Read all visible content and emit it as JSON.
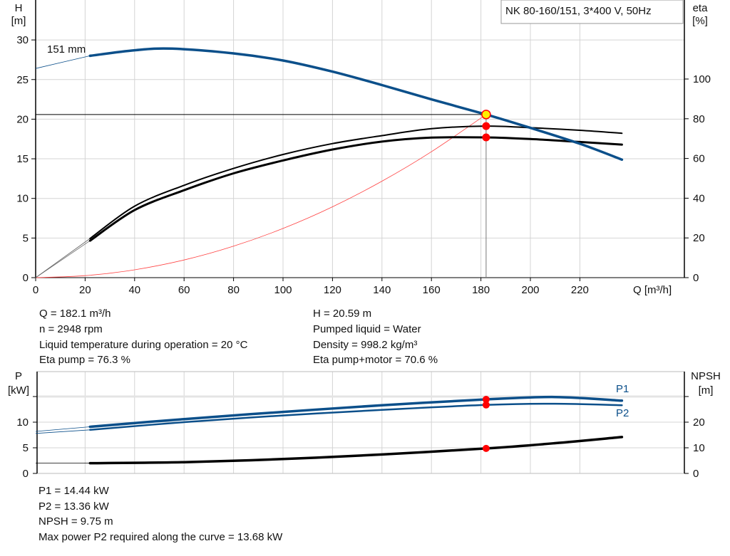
{
  "title_box": "NK 80-160/151, 3*400 V, 50Hz",
  "impeller_label": "151 mm",
  "colors": {
    "head": "#0b4f8a",
    "eta": "#000000",
    "system": "#ff4040",
    "op_point": "#ff0000",
    "op_point_fill": "#ffee00",
    "power": "#0b4f8a",
    "npsh": "#000000",
    "grid": "#d4d4d4"
  },
  "chart_data": [
    {
      "type": "line",
      "xlabel": "Q [m³/h]",
      "ylabel": "H\n[m]",
      "ylabel_lines": [
        "H",
        "[m]"
      ],
      "y2label_lines": [
        "eta",
        "[%]"
      ],
      "xlim": [
        0,
        262
      ],
      "ylim": [
        0,
        35
      ],
      "y2lim": [
        0,
        125
      ],
      "xticks": [
        0,
        20,
        40,
        60,
        80,
        100,
        120,
        140,
        160,
        180,
        200,
        220
      ],
      "yticks": [
        0,
        5,
        10,
        15,
        20,
        25,
        30
      ],
      "y2ticks": [
        0,
        20,
        40,
        60,
        80,
        100
      ],
      "grid": true,
      "series": [
        {
          "key": "head",
          "name": "151 mm",
          "axis": "H",
          "thin_until": 22,
          "x": [
            0,
            22,
            40,
            55,
            80,
            100,
            120,
            140,
            160,
            182.1,
            200,
            220,
            237
          ],
          "y": [
            26.4,
            28.0,
            28.7,
            28.9,
            28.3,
            27.4,
            26.0,
            24.3,
            22.5,
            20.59,
            18.9,
            16.9,
            14.9
          ]
        },
        {
          "key": "eta_pump",
          "axis": "eta",
          "thin_until": 22,
          "x": [
            0,
            22,
            40,
            60,
            80,
            100,
            120,
            140,
            160,
            182.1,
            200,
            220,
            237
          ],
          "y": [
            0,
            19.7,
            36,
            46.5,
            55,
            62,
            67.5,
            71.5,
            75,
            76.3,
            75.5,
            74.2,
            72.7
          ]
        },
        {
          "key": "eta_pump_motor",
          "axis": "eta",
          "thin_until": 22,
          "x": [
            0,
            22,
            40,
            60,
            80,
            100,
            120,
            140,
            160,
            182.1,
            200,
            220,
            237
          ],
          "y": [
            0,
            18.6,
            34,
            44,
            52.5,
            59,
            64.5,
            68.5,
            70.5,
            70.6,
            69.8,
            68.3,
            67
          ]
        },
        {
          "key": "system",
          "axis": "H",
          "x": [
            0,
            20,
            40,
            60,
            80,
            100,
            120,
            140,
            160,
            182.1
          ],
          "y": [
            0,
            0.25,
            0.99,
            2.23,
            3.97,
            6.21,
            8.94,
            12.17,
            15.89,
            20.59
          ]
        }
      ],
      "operating_point": {
        "Q": 182.1,
        "H": 20.59,
        "eta_pump": 76.3,
        "eta_pump_motor": 70.6
      }
    },
    {
      "type": "line",
      "ylabel_lines": [
        "P",
        "[kW]"
      ],
      "y2label_lines": [
        "NPSH",
        "[m]"
      ],
      "xlim": [
        0,
        262
      ],
      "ylim": [
        0,
        20
      ],
      "y2lim": [
        0,
        40
      ],
      "yticks": [
        0,
        5,
        10
      ],
      "y2ticks": [
        0,
        10,
        20
      ],
      "grid": true,
      "series": [
        {
          "key": "P1",
          "name": "P1",
          "axis": "P",
          "thin_until": 22,
          "x": [
            0,
            22,
            60,
            100,
            140,
            182.1,
            210,
            237
          ],
          "y": [
            8.2,
            9.1,
            10.6,
            12.0,
            13.3,
            14.44,
            14.9,
            14.2
          ]
        },
        {
          "key": "P2",
          "name": "P2",
          "axis": "P",
          "thin_until": 22,
          "x": [
            0,
            22,
            60,
            100,
            140,
            182.1,
            210,
            237
          ],
          "y": [
            7.8,
            8.5,
            10.0,
            11.3,
            12.4,
            13.36,
            13.6,
            13.3
          ]
        },
        {
          "key": "NPSH",
          "axis": "NPSH",
          "thin_until": 22,
          "x": [
            0,
            22,
            60,
            100,
            140,
            182.1,
            210,
            237
          ],
          "y": [
            4.0,
            4.0,
            4.4,
            5.6,
            7.4,
            9.75,
            11.8,
            14.2
          ]
        }
      ],
      "operating_point": {
        "Q": 182.1,
        "P1": 14.44,
        "P2": 13.36,
        "NPSH": 9.75
      }
    }
  ],
  "info_main": {
    "left": [
      "Q = 182.1 m³/h",
      "n = 2948 rpm",
      "Liquid temperature during operation = 20 °C",
      "Eta pump = 76.3 %"
    ],
    "right": [
      "H = 20.59 m",
      "Pumped liquid = Water",
      "Density = 998.2 kg/m³",
      "Eta pump+motor = 70.6 %"
    ]
  },
  "info_power": [
    "P1 = 14.44 kW",
    "P2 = 13.36 kW",
    "NPSH = 9.75 m",
    "Max power P2 required along the curve = 13.68 kW"
  ]
}
